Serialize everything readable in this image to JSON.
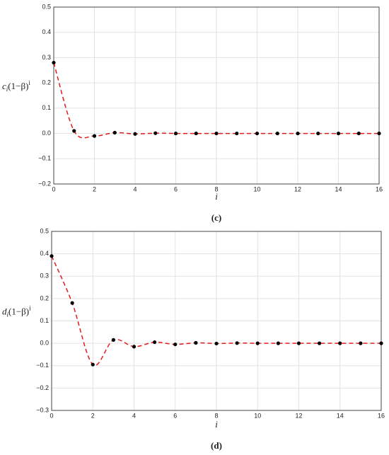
{
  "chart_data": [
    {
      "type": "line",
      "subtitle": "(c)",
      "x_label": "i",
      "y_label": {
        "symbol": "c",
        "subscript": "i",
        "text": "(1−β)",
        "superscript": "i"
      },
      "x": [
        0,
        1,
        2,
        3,
        4,
        5,
        6,
        7,
        8,
        9,
        10,
        11,
        12,
        13,
        14,
        15,
        16
      ],
      "series": [
        {
          "color": "#e41a1c",
          "marker_color": "#000000",
          "line_style": "dashed",
          "values": [
            0.28,
            0.01,
            -0.01,
            0.003,
            -0.002,
            0.001,
            0,
            0,
            0,
            0,
            0,
            0,
            0,
            0,
            0,
            0,
            0
          ]
        }
      ],
      "xlim": [
        0,
        16
      ],
      "xticks": [
        0,
        2,
        4,
        6,
        8,
        10,
        12,
        14,
        16
      ],
      "ylim": [
        -0.2,
        0.5
      ],
      "yticks": [
        {
          "value": -0.2,
          "label": "−0.2"
        },
        {
          "value": -0.1,
          "label": "−0.1"
        },
        {
          "value": 0,
          "label": "0.0"
        },
        0.1,
        0.2,
        0.3,
        0.4,
        0.5
      ],
      "grid": true
    },
    {
      "type": "line",
      "subtitle": "(d)",
      "x_label": "i",
      "y_label": {
        "symbol": "d",
        "subscript": "i",
        "text": "(1−β)",
        "superscript": "i"
      },
      "x": [
        0,
        1,
        2,
        3,
        4,
        5,
        6,
        7,
        8,
        9,
        10,
        11,
        12,
        13,
        14,
        15,
        16
      ],
      "series": [
        {
          "color": "#e41a1c",
          "marker_color": "#000000",
          "line_style": "dashed",
          "values": [
            0.39,
            0.18,
            -0.095,
            0.015,
            -0.015,
            0.005,
            -0.005,
            0.002,
            -0.001,
            0.001,
            0,
            0,
            0,
            0,
            0,
            0,
            0
          ]
        }
      ],
      "xlim": [
        0,
        16
      ],
      "xticks": [
        0,
        2,
        4,
        6,
        8,
        10,
        12,
        14,
        16
      ],
      "ylim": [
        -0.3,
        0.5
      ],
      "yticks": [
        {
          "value": -0.3,
          "label": "−0.3"
        },
        {
          "value": -0.2,
          "label": "−0.2"
        },
        {
          "value": -0.1,
          "label": "−0.1"
        },
        {
          "value": 0,
          "label": "0.0"
        },
        0.1,
        0.2,
        0.3,
        0.4,
        0.5
      ],
      "grid": true
    }
  ]
}
